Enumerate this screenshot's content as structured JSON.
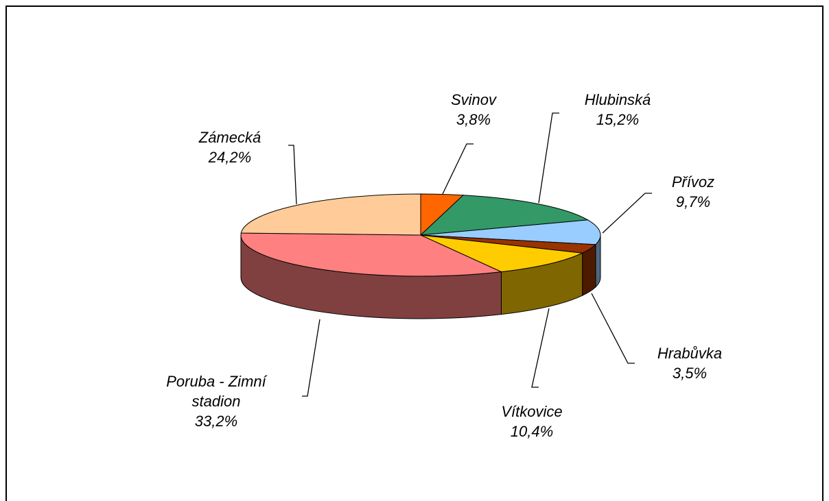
{
  "chart_data": {
    "type": "pie",
    "categories": [
      "Svinov",
      "Hlubinská",
      "Přívoz",
      "Hrabůvka",
      "Vítkovice",
      "Poruba - Zimní stadion",
      "Zámecká"
    ],
    "values": [
      3.8,
      15.2,
      9.7,
      3.5,
      10.4,
      33.2,
      24.2
    ],
    "value_labels": [
      "3,8%",
      "15,2%",
      "9,7%",
      "3,5%",
      "10,4%",
      "33,2%",
      "24,2%"
    ],
    "colors": [
      "#ff6600",
      "#339966",
      "#99ccff",
      "#993300",
      "#ffcc00",
      "#ff8080",
      "#ffcc99"
    ]
  }
}
